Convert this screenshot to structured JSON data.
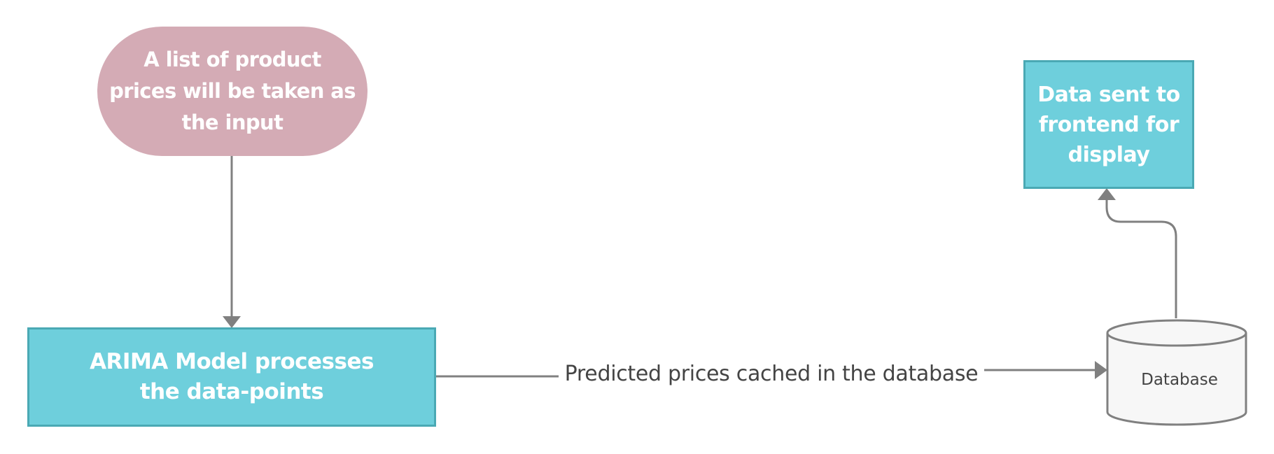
{
  "nodes": {
    "input": "A list of product prices will be taken as the input",
    "model": "ARIMA Model processes the data-points",
    "frontend": "Data sent to frontend for display",
    "database": "Database"
  },
  "edges": {
    "model_to_database": "Predicted prices cached in the database"
  },
  "colors": {
    "input_fill": "#d4abb5",
    "process_fill": "#6ecfdc",
    "process_border": "#4aa9b4",
    "connector": "#808080",
    "database_fill": "#f7f7f7"
  }
}
